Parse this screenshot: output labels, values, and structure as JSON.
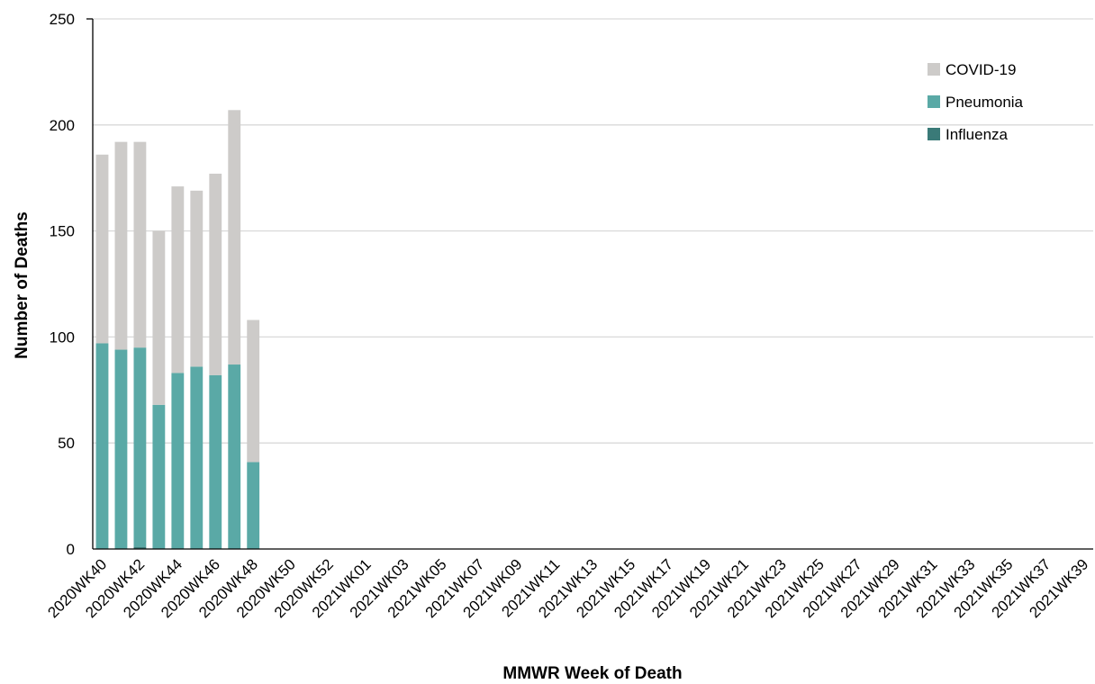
{
  "chart_data": {
    "type": "bar",
    "stacked": true,
    "xlabel": "MMWR Week of Death",
    "ylabel": "Number of Deaths",
    "ylim": [
      0,
      250
    ],
    "yticks": [
      0,
      50,
      100,
      150,
      200,
      250
    ],
    "grid": "horizontal",
    "legend_position": "top-right",
    "categories": [
      "2020WK40",
      "2020WK41",
      "2020WK42",
      "2020WK43",
      "2020WK44",
      "2020WK45",
      "2020WK46",
      "2020WK47",
      "2020WK48",
      "2020WK49",
      "2020WK50",
      "2020WK51",
      "2020WK52",
      "2020WK53",
      "2021WK01",
      "2021WK02",
      "2021WK03",
      "2021WK04",
      "2021WK05",
      "2021WK06",
      "2021WK07",
      "2021WK08",
      "2021WK09",
      "2021WK10",
      "2021WK11",
      "2021WK12",
      "2021WK13",
      "2021WK14",
      "2021WK15",
      "2021WK16",
      "2021WK17",
      "2021WK18",
      "2021WK19",
      "2021WK20",
      "2021WK21",
      "2021WK22",
      "2021WK23",
      "2021WK24",
      "2021WK25",
      "2021WK26",
      "2021WK27",
      "2021WK28",
      "2021WK29",
      "2021WK30",
      "2021WK31",
      "2021WK32",
      "2021WK33",
      "2021WK34",
      "2021WK35",
      "2021WK36",
      "2021WK37",
      "2021WK38",
      "2021WK39"
    ],
    "visible_tick_labels": [
      "2020WK40",
      "2020WK42",
      "2020WK44",
      "2020WK46",
      "2020WK48",
      "2020WK50",
      "2020WK52",
      "2021WK01",
      "2021WK03",
      "2021WK05",
      "2021WK07",
      "2021WK09",
      "2021WK11",
      "2021WK13",
      "2021WK15",
      "2021WK17",
      "2021WK19",
      "2021WK21",
      "2021WK23",
      "2021WK25",
      "2021WK27",
      "2021WK29",
      "2021WK31",
      "2021WK33",
      "2021WK35",
      "2021WK37",
      "2021WK39"
    ],
    "series": [
      {
        "name": "Influenza",
        "color": "#3a7a78",
        "values": [
          0,
          0,
          1,
          0,
          0,
          0,
          0,
          0,
          0,
          0,
          0,
          0,
          0,
          0,
          0,
          0,
          0,
          0,
          0,
          0,
          0,
          0,
          0,
          0,
          0,
          0,
          0,
          0,
          0,
          0,
          0,
          0,
          0,
          0,
          0,
          0,
          0,
          0,
          0,
          0,
          0,
          0,
          0,
          0,
          0,
          0,
          0,
          0,
          0,
          0,
          0,
          0,
          0
        ]
      },
      {
        "name": "Pneumonia",
        "color": "#5aa9a6",
        "values": [
          97,
          94,
          94,
          68,
          83,
          86,
          82,
          87,
          41,
          0,
          0,
          0,
          0,
          0,
          0,
          0,
          0,
          0,
          0,
          0,
          0,
          0,
          0,
          0,
          0,
          0,
          0,
          0,
          0,
          0,
          0,
          0,
          0,
          0,
          0,
          0,
          0,
          0,
          0,
          0,
          0,
          0,
          0,
          0,
          0,
          0,
          0,
          0,
          0,
          0,
          0,
          0,
          0
        ]
      },
      {
        "name": "COVID-19",
        "color": "#cdcbc9",
        "values": [
          89,
          98,
          97,
          82,
          88,
          83,
          95,
          120,
          67,
          0,
          0,
          0,
          0,
          0,
          0,
          0,
          0,
          0,
          0,
          0,
          0,
          0,
          0,
          0,
          0,
          0,
          0,
          0,
          0,
          0,
          0,
          0,
          0,
          0,
          0,
          0,
          0,
          0,
          0,
          0,
          0,
          0,
          0,
          0,
          0,
          0,
          0,
          0,
          0,
          0,
          0,
          0,
          0
        ]
      }
    ],
    "legend_order": [
      "COVID-19",
      "Pneumonia",
      "Influenza"
    ]
  }
}
